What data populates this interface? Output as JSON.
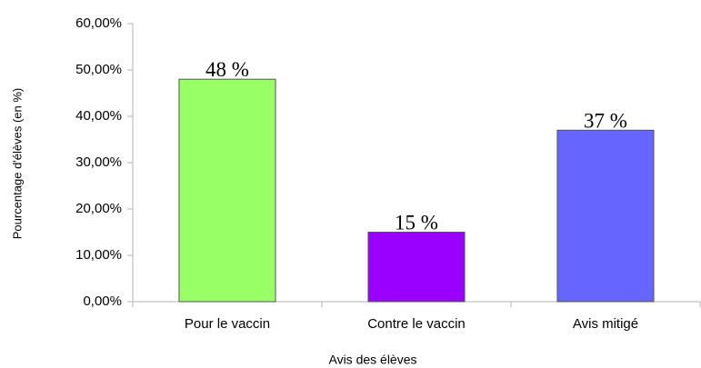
{
  "chart_data": {
    "type": "bar",
    "y_label": "Pourcentage d'élèves (en %)",
    "x_label": "Avis des élèves",
    "categories": [
      "Pour le vaccin",
      "Contre le vaccin",
      "Avis mitigé"
    ],
    "values": [
      48,
      15,
      37
    ],
    "value_labels": [
      "48 %",
      "15 %",
      "37 %"
    ],
    "colors": [
      "#99ff66",
      "#9900ff",
      "#6666ff"
    ],
    "ylim": [
      0,
      60
    ],
    "yticks": [
      {
        "value": 0,
        "label": "0,00%"
      },
      {
        "value": 10,
        "label": "10,00%"
      },
      {
        "value": 20,
        "label": "20,00%"
      },
      {
        "value": 30,
        "label": "30,00%"
      },
      {
        "value": 40,
        "label": "40,00%"
      },
      {
        "value": 50,
        "label": "50,00%"
      },
      {
        "value": 60,
        "label": "60,00%"
      }
    ],
    "grid": false
  }
}
